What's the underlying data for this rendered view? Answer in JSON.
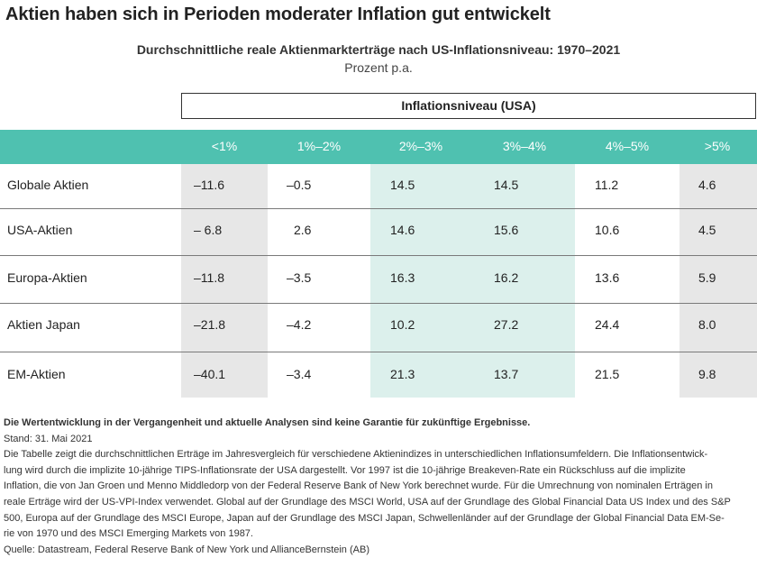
{
  "title": "Aktien haben sich in Perioden moderater Inflation gut entwickelt",
  "subtitle": "Durchschnittliche reale Aktienmarkterträge nach US-Inflationsniveau: 1970–2021",
  "unit": "Prozent p.a.",
  "group_header": "Inflationsniveau (USA)",
  "chart_data": {
    "type": "table",
    "title": "Durchschnittliche reale Aktienmarkterträge nach US-Inflationsniveau: 1970–2021",
    "columns": [
      "<1%",
      "1%–2%",
      "2%–3%",
      "3%–4%",
      "4%–5%",
      ">5%"
    ],
    "rows": [
      {
        "label": "Globale Aktien",
        "values": [
          "–11.6",
          "–0.5",
          "14.5",
          "14.5",
          "11.2",
          "4.6"
        ]
      },
      {
        "label": "USA-Aktien",
        "values": [
          "– 6.8",
          "2.6",
          "14.6",
          "15.6",
          "10.6",
          "4.5"
        ]
      },
      {
        "label": "Europa-Aktien",
        "values": [
          "–11.8",
          "–3.5",
          "16.3",
          "16.2",
          "13.6",
          "5.9"
        ]
      },
      {
        "label": "Aktien Japan",
        "values": [
          "–21.8",
          "–4.2",
          "10.2",
          "27.2",
          "24.4",
          "8.0"
        ]
      },
      {
        "label": "EM-Aktien",
        "values": [
          "–40.1",
          "–3.4",
          "21.3",
          "13.7",
          "21.5",
          "9.8"
        ]
      }
    ],
    "colors": {
      "header": "#4fc1b0",
      "grey_band": "#e7e7e7",
      "teal_band": "#dcf0ec"
    }
  },
  "notes": {
    "disclaimer": "Die Wertentwicklung in der Vergangenheit und aktuelle Analysen sind keine Garantie für zukünftige Ergebnisse.",
    "date": "Stand: 31. Mai 2021",
    "line1": "Die Tabelle zeigt die durchschnittlichen Erträge im Jahresvergleich für verschiedene Aktienindizes in unterschiedlichen Inflationsumfeldern. Die Inflationsentwick-",
    "line2": "lung wird durch die implizite 10-jährige TIPS-Inflationsrate der USA dargestellt. Vor 1997 ist die 10-jährige Breakeven-Rate ein Rückschluss auf die implizite",
    "line3": "Inflation, die von Jan Groen und Menno Middledorp von der Federal Reserve Bank of New York berechnet wurde. Für die Umrechnung von nominalen Erträgen in",
    "line4": "reale Erträge wird der US-VPI-Index verwendet. Global auf der Grundlage des MSCI World, USA auf der Grundlage des Global Financial Data US Index und des S&P",
    "line5": "500, Europa auf der Grundlage des MSCI Europe, Japan auf der Grundlage des MSCI Japan, Schwellenländer auf der Grundlage der Global Financial Data EM-Se-",
    "line6": "rie von 1970 und des MSCI Emerging Markets von 1987.",
    "source": "Quelle: Datastream, Federal Reserve Bank of New York und AllianceBernstein (AB)"
  }
}
